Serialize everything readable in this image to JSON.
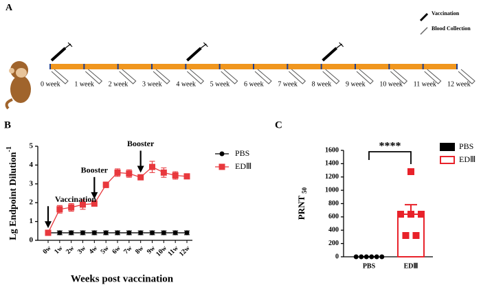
{
  "timeline": {
    "panel_label": "A",
    "legend": [
      "Vaccination",
      "Blood Collection"
    ],
    "weeks": [
      "0 week",
      "1 week",
      "2 week",
      "3 week",
      "4 week",
      "5 week",
      "6 week",
      "7 week",
      "8 week",
      "9 week",
      "10 week",
      "11 week",
      "12 week"
    ],
    "vaccination_weeks": [
      0,
      4,
      8
    ]
  },
  "chart_data": [
    {
      "panel_label": "B",
      "type": "line",
      "y_label": "Lg Endpoint Dilution",
      "y_label_sup": "-1",
      "x_label": "Weeks post vaccination",
      "categories": [
        "0w",
        "1w",
        "2w",
        "3w",
        "4w",
        "5w",
        "6w",
        "7w",
        "8w",
        "9w",
        "10w",
        "11w",
        "12w"
      ],
      "ylim": [
        0,
        5
      ],
      "yticks": [
        0,
        1,
        2,
        3,
        4,
        5
      ],
      "legend": "upper right",
      "series": [
        {
          "name": "PBS",
          "color": "#000000",
          "marker": "circle",
          "values": [
            0.4,
            0.4,
            0.4,
            0.4,
            0.4,
            0.4,
            0.4,
            0.4,
            0.4,
            0.4,
            0.4,
            0.4,
            0.4
          ],
          "errors": [
            0.1,
            0.1,
            0.1,
            0.1,
            0.1,
            0.1,
            0.1,
            0.1,
            0.1,
            0.1,
            0.1,
            0.1,
            0.1
          ]
        },
        {
          "name": "EDⅢ",
          "color": "#e8383d",
          "marker": "square",
          "values": [
            0.4,
            1.65,
            1.75,
            1.9,
            1.95,
            2.95,
            3.6,
            3.55,
            3.35,
            3.9,
            3.6,
            3.45,
            3.4
          ],
          "errors": [
            0.1,
            0.2,
            0.2,
            0.25,
            0.1,
            0.15,
            0.2,
            0.2,
            0.1,
            0.3,
            0.25,
            0.2,
            0.1
          ]
        }
      ],
      "annotations": [
        {
          "text": "Vaccination",
          "category": 0
        },
        {
          "text": "Booster",
          "category": 4
        },
        {
          "text": "Booster",
          "category": 8
        }
      ]
    },
    {
      "panel_label": "C",
      "type": "bar",
      "y_label": "PRNT",
      "y_label_sub": "50",
      "categories": [
        "PBS",
        "EDⅢ"
      ],
      "colors": [
        "#000000",
        "#e8222a"
      ],
      "markers": [
        "circle",
        "square"
      ],
      "values": [
        0,
        640
      ],
      "errors": [
        0,
        143
      ],
      "points": [
        [
          0,
          0,
          0,
          0,
          0,
          0
        ],
        [
          1280,
          640,
          640,
          640,
          320,
          320
        ]
      ],
      "ylim": [
        0,
        1600
      ],
      "yticks": [
        0,
        200,
        400,
        600,
        800,
        1000,
        1200,
        1400,
        1600
      ],
      "significance": "****",
      "legend": "upper right"
    }
  ]
}
